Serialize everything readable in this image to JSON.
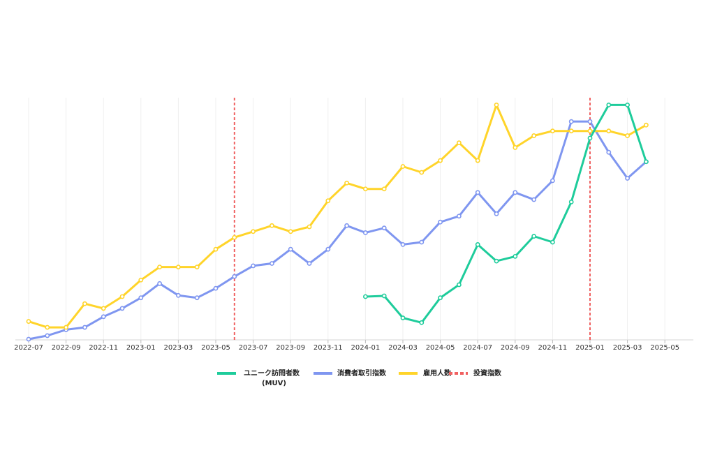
{
  "chart_data": {
    "type": "line",
    "title": "",
    "xlabel": "",
    "ylabel": "",
    "x_ticks": [
      "2022-07",
      "2022-09",
      "2022-11",
      "2023-01",
      "2023-03",
      "2023-05",
      "2023-07",
      "2023-09",
      "2023-11",
      "2024-01",
      "2024-03",
      "2024-05",
      "2024-07",
      "2024-09",
      "2024-11",
      "2025-01",
      "2025-03",
      "2025-05"
    ],
    "x": [
      "2022-07",
      "2022-08",
      "2022-09",
      "2022-10",
      "2022-11",
      "2022-12",
      "2023-01",
      "2023-02",
      "2023-03",
      "2023-04",
      "2023-05",
      "2023-06",
      "2023-07",
      "2023-08",
      "2023-09",
      "2023-10",
      "2023-11",
      "2023-12",
      "2024-01",
      "2024-02",
      "2024-03",
      "2024-04",
      "2024-05",
      "2024-06",
      "2024-07",
      "2024-08",
      "2024-09",
      "2024-10",
      "2024-11",
      "2024-12",
      "2025-01",
      "2025-02",
      "2025-03",
      "2025-04"
    ],
    "ylim": [
      0,
      100
    ],
    "y_axis_visible": false,
    "grid": "vertical",
    "legend_position": "bottom",
    "series": [
      {
        "name": "ユニーク訪問者数\n(MUV)",
        "color": "#1ecc9b",
        "dash": "solid",
        "values": [
          null,
          null,
          null,
          null,
          null,
          null,
          null,
          null,
          null,
          null,
          null,
          null,
          null,
          null,
          null,
          null,
          null,
          null,
          18,
          18.3,
          9,
          7,
          17.5,
          23,
          40,
          33,
          35,
          43.5,
          41,
          58,
          85,
          99,
          99,
          75
        ]
      },
      {
        "name": "消費者取引指数",
        "color": "#7f96f0",
        "dash": "solid",
        "values": [
          0,
          1.5,
          4,
          5,
          9.5,
          13,
          17.5,
          23.5,
          18.5,
          17.5,
          21.5,
          26.5,
          31,
          32,
          38,
          32,
          38,
          48,
          45,
          47,
          40,
          41,
          49.5,
          52,
          62,
          53,
          62,
          59,
          67,
          92,
          92,
          79,
          68,
          75
        ]
      },
      {
        "name": "雇用人数",
        "color": "#ffd42a",
        "dash": "solid",
        "values": [
          7.5,
          5,
          5,
          15,
          13,
          18,
          25,
          30.5,
          30.5,
          30.5,
          38,
          43,
          45.5,
          48,
          45.5,
          47.5,
          58.5,
          66,
          63.5,
          63.5,
          73,
          70.5,
          75.5,
          83,
          75.5,
          99,
          81,
          86,
          88,
          88,
          88,
          88,
          86,
          90.5
        ]
      },
      {
        "name": "投資指数",
        "color": "#f06060",
        "dash": "dashed",
        "vertical_markers": [
          "2023-06",
          "2025-01"
        ]
      }
    ]
  }
}
